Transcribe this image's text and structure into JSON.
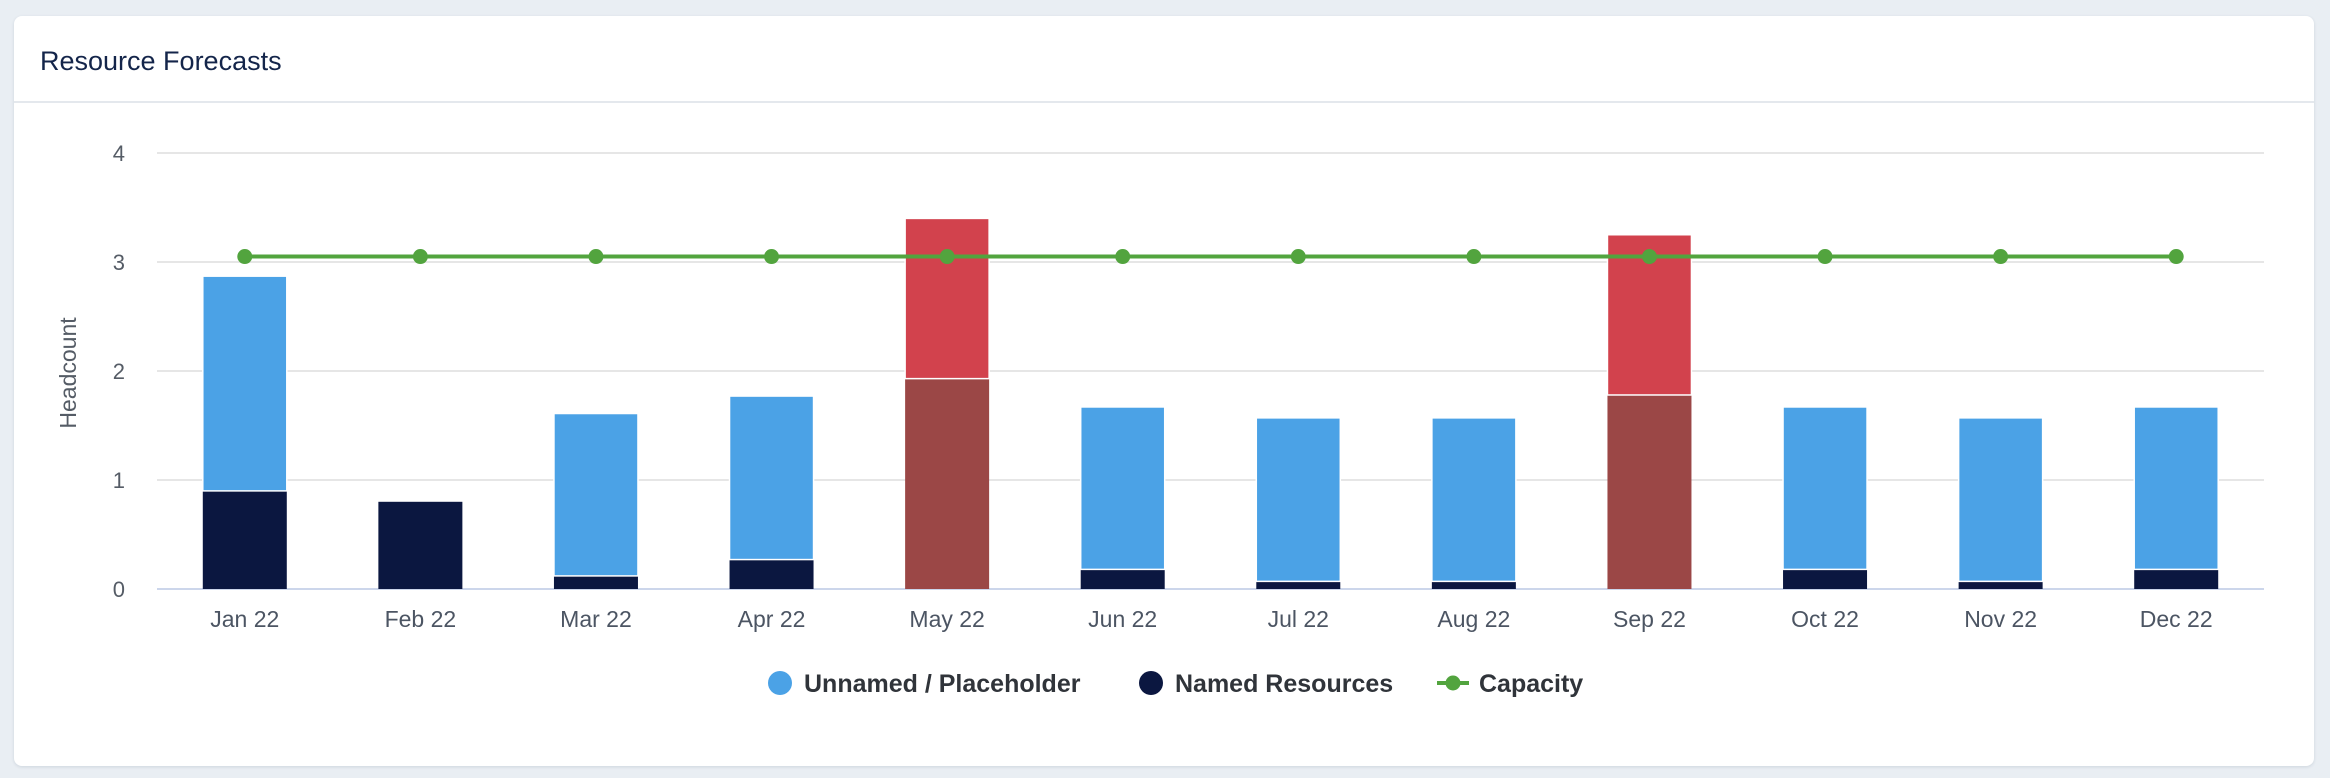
{
  "card": {
    "title": "Resource Forecasts"
  },
  "chart_data": {
    "type": "bar",
    "stacked": true,
    "title": "Resource Forecasts",
    "xlabel": "",
    "ylabel": "Headcount",
    "ylim": [
      0,
      4
    ],
    "yticks": [
      "0",
      "1",
      "2",
      "3",
      "4"
    ],
    "grid": true,
    "legend_position": "bottom",
    "categories": [
      "Jan 22",
      "Feb 22",
      "Mar 22",
      "Apr 22",
      "May 22",
      "Jun 22",
      "Jul 22",
      "Aug 22",
      "Sep 22",
      "Oct 22",
      "Nov 22",
      "Dec 22"
    ],
    "series": [
      {
        "name": "Named Resources",
        "kind": "bar",
        "color": "#0b1740",
        "values": [
          0.9,
          0.8,
          0.12,
          0.27,
          1.93,
          0.18,
          0.07,
          0.07,
          1.78,
          0.18,
          0.07,
          0.18
        ]
      },
      {
        "name": "Unnamed / Placeholder",
        "kind": "bar",
        "color": "#4ba2e6",
        "values": [
          1.97,
          0,
          1.49,
          1.5,
          1.47,
          1.49,
          1.5,
          1.5,
          1.47,
          1.49,
          1.5,
          1.49
        ]
      },
      {
        "name": "Capacity",
        "kind": "line",
        "color": "#52a43e",
        "values": [
          3.05,
          3.05,
          3.05,
          3.05,
          3.05,
          3.05,
          3.05,
          3.05,
          3.05,
          3.05,
          3.05,
          3.05
        ]
      }
    ],
    "over_capacity_colors": {
      "named": "#9b4746",
      "unnamed": "#d2424d"
    },
    "legend": [
      {
        "label": "Unnamed / Placeholder",
        "symbol": "circle",
        "color": "#4ba2e6"
      },
      {
        "label": "Named Resources",
        "symbol": "circle",
        "color": "#0b1740"
      },
      {
        "label": "Capacity",
        "symbol": "line",
        "color": "#52a43e"
      }
    ]
  }
}
